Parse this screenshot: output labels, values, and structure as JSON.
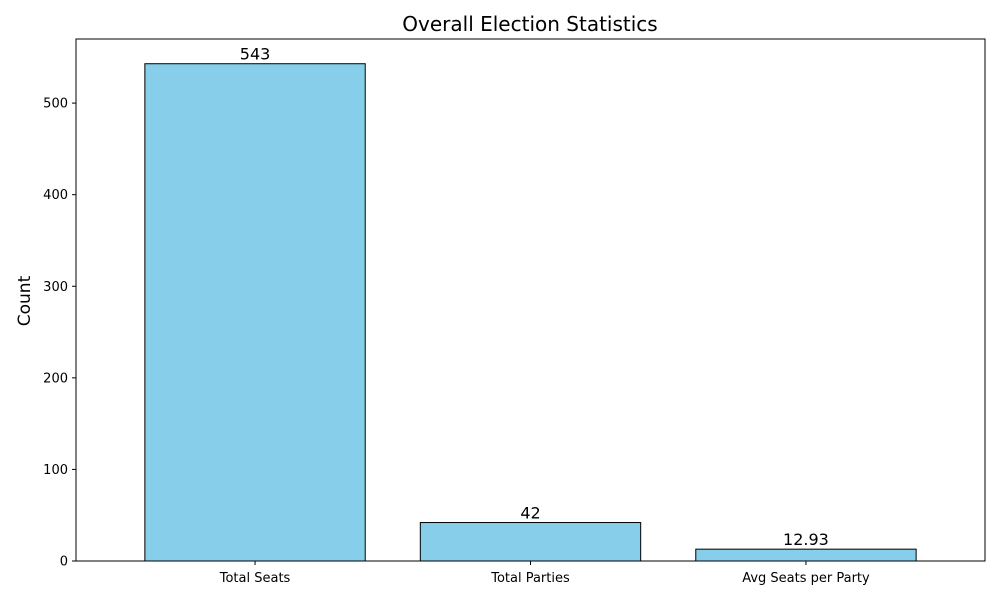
{
  "chart_data": {
    "type": "bar",
    "title": "Overall Election Statistics",
    "xlabel": "",
    "ylabel": "Count",
    "categories": [
      "Total Seats",
      "Total Parties",
      "Avg Seats per Party"
    ],
    "values": [
      543,
      42,
      12.93
    ],
    "value_labels": [
      "543",
      "42",
      "12.93"
    ],
    "ylim": [
      0,
      570
    ],
    "yticks": [
      0,
      100,
      200,
      300,
      400,
      500
    ],
    "grid": false,
    "legend": "none",
    "colors": {
      "bar_fill": "#87ceeb",
      "bar_edge": "#000000"
    }
  }
}
